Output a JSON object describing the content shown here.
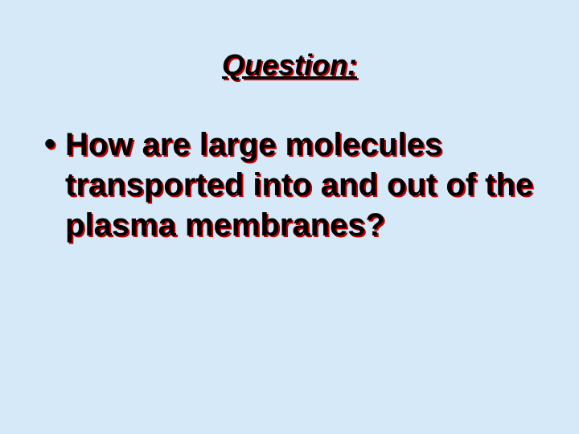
{
  "slide": {
    "background_color": "#d6e9f8",
    "title": {
      "text": "Question:",
      "font_size": 36,
      "font_weight": "bold",
      "font_style": "italic",
      "text_decoration": "underline",
      "color": "#000000",
      "shadow_color": "#c40000"
    },
    "bullet": {
      "marker": "•",
      "text": "How are large molecules transported into and out of the plasma membranes?",
      "font_size": 40,
      "font_weight": "bold",
      "color": "#000000",
      "shadow_color": "#c40000"
    }
  }
}
